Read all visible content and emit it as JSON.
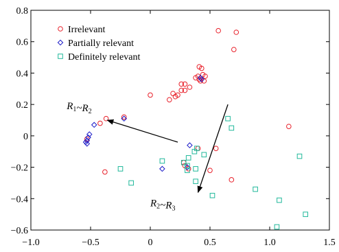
{
  "chart_data": {
    "type": "scatter",
    "xlim": [
      -1.0,
      1.5
    ],
    "ylim": [
      -0.6,
      0.8
    ],
    "xticks": [
      "−1.0",
      "−0.5",
      "0",
      "0.5",
      "1.0",
      "1.5"
    ],
    "xtick_values": [
      -1.0,
      -0.5,
      0,
      0.5,
      1.0,
      1.5
    ],
    "yticks": [
      "−0.6",
      "−0.4",
      "−0.2",
      "0",
      "0.2",
      "0.4",
      "0.6",
      "0.8"
    ],
    "ytick_values": [
      -0.6,
      -0.4,
      -0.2,
      0,
      0.2,
      0.4,
      0.6,
      0.8
    ],
    "grid": false,
    "legend_position": "top-left",
    "series": [
      {
        "name": "Irrelevant",
        "marker": "circle",
        "color": "#e8202a",
        "points": [
          [
            0.72,
            0.66
          ],
          [
            0.57,
            0.67
          ],
          [
            0.7,
            0.55
          ],
          [
            0.41,
            0.44
          ],
          [
            0.43,
            0.43
          ],
          [
            0.44,
            0.39
          ],
          [
            0.46,
            0.38
          ],
          [
            0.4,
            0.38
          ],
          [
            0.38,
            0.37
          ],
          [
            0.41,
            0.36
          ],
          [
            0.45,
            0.35
          ],
          [
            0.42,
            0.35
          ],
          [
            0.26,
            0.33
          ],
          [
            0.29,
            0.33
          ],
          [
            0.33,
            0.31
          ],
          [
            0.26,
            0.29
          ],
          [
            0.29,
            0.29
          ],
          [
            0.23,
            0.26
          ],
          [
            0.19,
            0.27
          ],
          [
            0.16,
            0.23
          ],
          [
            0.21,
            0.25
          ],
          [
            0.0,
            0.26
          ],
          [
            -0.37,
            0.11
          ],
          [
            -0.42,
            0.08
          ],
          [
            -0.22,
            0.12
          ],
          [
            1.16,
            0.06
          ],
          [
            0.55,
            -0.08
          ],
          [
            0.4,
            -0.08
          ],
          [
            0.5,
            -0.22
          ],
          [
            0.68,
            -0.28
          ],
          [
            -0.38,
            -0.23
          ],
          [
            0.28,
            -0.17
          ],
          [
            0.29,
            -0.19
          ],
          [
            0.32,
            -0.21
          ],
          [
            -0.53,
            -0.02
          ]
        ]
      },
      {
        "name": "Partially relevant",
        "marker": "diamond",
        "color": "#1a1ac8",
        "points": [
          [
            0.43,
            0.36
          ],
          [
            0.42,
            0.37
          ],
          [
            -0.22,
            0.11
          ],
          [
            -0.47,
            0.07
          ],
          [
            -0.51,
            0.01
          ],
          [
            -0.52,
            -0.01
          ],
          [
            -0.53,
            -0.03
          ],
          [
            -0.54,
            -0.04
          ],
          [
            -0.53,
            -0.05
          ],
          [
            0.33,
            -0.06
          ],
          [
            0.1,
            -0.21
          ],
          [
            0.31,
            -0.2
          ]
        ]
      },
      {
        "name": "Definitely relevant",
        "marker": "square",
        "color": "#1fb89a",
        "points": [
          [
            0.65,
            0.11
          ],
          [
            0.68,
            0.05
          ],
          [
            0.39,
            -0.08
          ],
          [
            0.37,
            -0.1
          ],
          [
            0.45,
            -0.12
          ],
          [
            0.32,
            -0.14
          ],
          [
            0.1,
            -0.16
          ],
          [
            0.28,
            -0.17
          ],
          [
            0.31,
            -0.19
          ],
          [
            0.31,
            -0.22
          ],
          [
            -0.25,
            -0.21
          ],
          [
            0.38,
            -0.21
          ],
          [
            1.25,
            -0.13
          ],
          [
            -0.16,
            -0.3
          ],
          [
            0.38,
            -0.29
          ],
          [
            0.88,
            -0.34
          ],
          [
            0.52,
            -0.38
          ],
          [
            1.08,
            -0.41
          ],
          [
            1.3,
            -0.5
          ],
          [
            1.06,
            -0.58
          ]
        ]
      }
    ],
    "annotations": [
      {
        "base": "R",
        "sub1": "1",
        "sep": "~",
        "base2": "R",
        "sub2": "2",
        "x": -0.7,
        "y": 0.17,
        "arrow_from": [
          0.23,
          -0.04
        ],
        "arrow_to": [
          -0.36,
          0.1
        ]
      },
      {
        "base": "R",
        "sub1": "2",
        "sep": "~",
        "base2": "R",
        "sub2": "3",
        "x": 0.0,
        "y": -0.45,
        "arrow_from": [
          0.65,
          0.2
        ],
        "arrow_to": [
          0.4,
          -0.36
        ]
      }
    ]
  }
}
